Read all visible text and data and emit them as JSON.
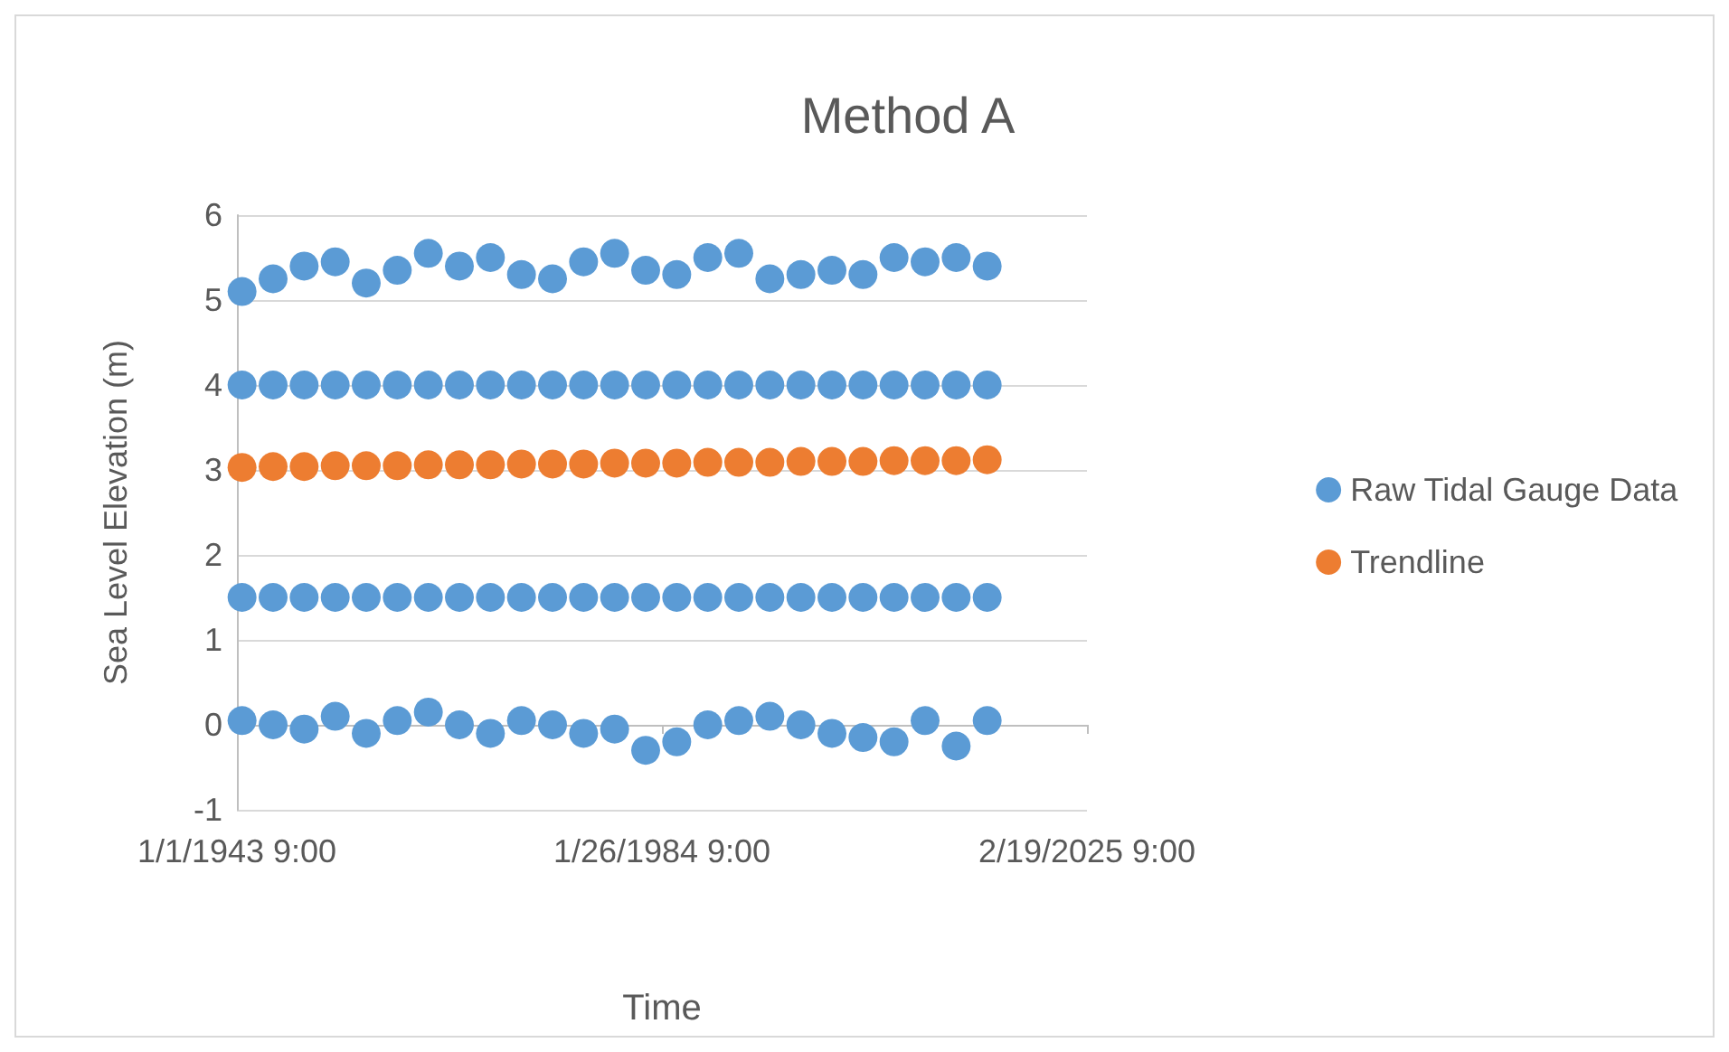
{
  "chart_data": {
    "type": "scatter",
    "title": "Method A",
    "xlabel": "Time",
    "ylabel": "Sea Level Elevation (m)",
    "xlim": [
      "1943-01-01T09:00",
      "2025-02-19T09:00"
    ],
    "xticks": [
      {
        "value": "1943-01-01T09:00",
        "label": "1/1/1943 9:00"
      },
      {
        "value": "1984-01-26T09:00",
        "label": "1/26/1984 9:00"
      },
      {
        "value": "2025-02-19T09:00",
        "label": "2/19/2025 9:00"
      }
    ],
    "ylim": [
      -1,
      6
    ],
    "yticks": [
      -1,
      0,
      1,
      2,
      3,
      4,
      5,
      6
    ],
    "grid": "y",
    "legend": "right",
    "marker": "circle",
    "series": [
      {
        "name": "Raw Tidal Gauge Data",
        "color": "#5b9bd5",
        "x": [
          "1943-07-01",
          "1943-07-01",
          "1943-07-01",
          "1943-07-01",
          "1946-07-01",
          "1946-07-01",
          "1946-07-01",
          "1946-07-01",
          "1949-07-01",
          "1949-07-01",
          "1949-07-01",
          "1949-07-01",
          "1952-07-01",
          "1952-07-01",
          "1952-07-01",
          "1952-07-01",
          "1955-07-01",
          "1955-07-01",
          "1955-07-01",
          "1955-07-01",
          "1958-07-01",
          "1958-07-01",
          "1958-07-01",
          "1958-07-01",
          "1961-07-01",
          "1961-07-01",
          "1961-07-01",
          "1961-07-01",
          "1964-07-01",
          "1964-07-01",
          "1964-07-01",
          "1964-07-01",
          "1967-07-01",
          "1967-07-01",
          "1967-07-01",
          "1967-07-01",
          "1970-07-01",
          "1970-07-01",
          "1970-07-01",
          "1970-07-01",
          "1973-07-01",
          "1973-07-01",
          "1973-07-01",
          "1973-07-01",
          "1976-07-01",
          "1976-07-01",
          "1976-07-01",
          "1976-07-01",
          "1979-07-01",
          "1979-07-01",
          "1979-07-01",
          "1979-07-01",
          "1982-07-01",
          "1982-07-01",
          "1982-07-01",
          "1982-07-01",
          "1985-07-01",
          "1985-07-01",
          "1985-07-01",
          "1985-07-01",
          "1988-07-01",
          "1988-07-01",
          "1988-07-01",
          "1988-07-01",
          "1991-07-01",
          "1991-07-01",
          "1991-07-01",
          "1991-07-01",
          "1994-07-01",
          "1994-07-01",
          "1994-07-01",
          "1994-07-01",
          "1997-07-01",
          "1997-07-01",
          "1997-07-01",
          "1997-07-01",
          "2000-07-01",
          "2000-07-01",
          "2000-07-01",
          "2000-07-01",
          "2003-07-01",
          "2003-07-01",
          "2003-07-01",
          "2003-07-01",
          "2006-07-01",
          "2006-07-01",
          "2006-07-01",
          "2006-07-01",
          "2009-07-01",
          "2009-07-01",
          "2009-07-01",
          "2009-07-01",
          "2012-07-01",
          "2012-07-01",
          "2012-07-01",
          "2012-07-01",
          "2015-07-01",
          "2015-07-01",
          "2015-07-01",
          "2015-07-01"
        ],
        "values": [
          5.1,
          4.0,
          1.5,
          0.05,
          5.25,
          4.0,
          1.5,
          0.0,
          5.4,
          4.0,
          1.5,
          -0.05,
          5.45,
          4.0,
          1.5,
          0.1,
          5.2,
          4.0,
          1.5,
          -0.1,
          5.35,
          4.0,
          1.5,
          0.05,
          5.55,
          4.0,
          1.5,
          0.15,
          5.4,
          4.0,
          1.5,
          0.0,
          5.5,
          4.0,
          1.5,
          -0.1,
          5.3,
          4.0,
          1.5,
          0.05,
          5.25,
          4.0,
          1.5,
          0.0,
          5.45,
          4.0,
          1.5,
          -0.1,
          5.55,
          4.0,
          1.5,
          -0.05,
          5.35,
          4.0,
          1.5,
          -0.3,
          5.3,
          4.0,
          1.5,
          -0.2,
          5.5,
          4.0,
          1.5,
          0.0,
          5.55,
          4.0,
          1.5,
          0.05,
          5.25,
          4.0,
          1.5,
          0.1,
          5.3,
          4.0,
          1.5,
          0.0,
          5.35,
          4.0,
          1.5,
          -0.1,
          5.3,
          4.0,
          1.5,
          -0.15,
          5.5,
          4.0,
          1.5,
          -0.2,
          5.45,
          4.0,
          1.5,
          0.05,
          5.5,
          4.0,
          1.5,
          -0.25,
          5.4,
          4.0,
          1.5,
          0.05
        ]
      },
      {
        "name": "Trendline",
        "color": "#ed7d31",
        "x": [
          "1943-07-01",
          "1946-07-01",
          "1949-07-01",
          "1952-07-01",
          "1955-07-01",
          "1958-07-01",
          "1961-07-01",
          "1964-07-01",
          "1967-07-01",
          "1970-07-01",
          "1973-07-01",
          "1976-07-01",
          "1979-07-01",
          "1982-07-01",
          "1985-07-01",
          "1988-07-01",
          "1991-07-01",
          "1994-07-01",
          "1997-07-01",
          "2000-07-01",
          "2003-07-01",
          "2006-07-01",
          "2009-07-01",
          "2012-07-01",
          "2015-07-01"
        ],
        "values": [
          3.03,
          3.04,
          3.04,
          3.05,
          3.05,
          3.05,
          3.06,
          3.06,
          3.06,
          3.07,
          3.07,
          3.07,
          3.08,
          3.08,
          3.08,
          3.09,
          3.09,
          3.09,
          3.1,
          3.1,
          3.1,
          3.11,
          3.11,
          3.11,
          3.12
        ]
      }
    ]
  }
}
